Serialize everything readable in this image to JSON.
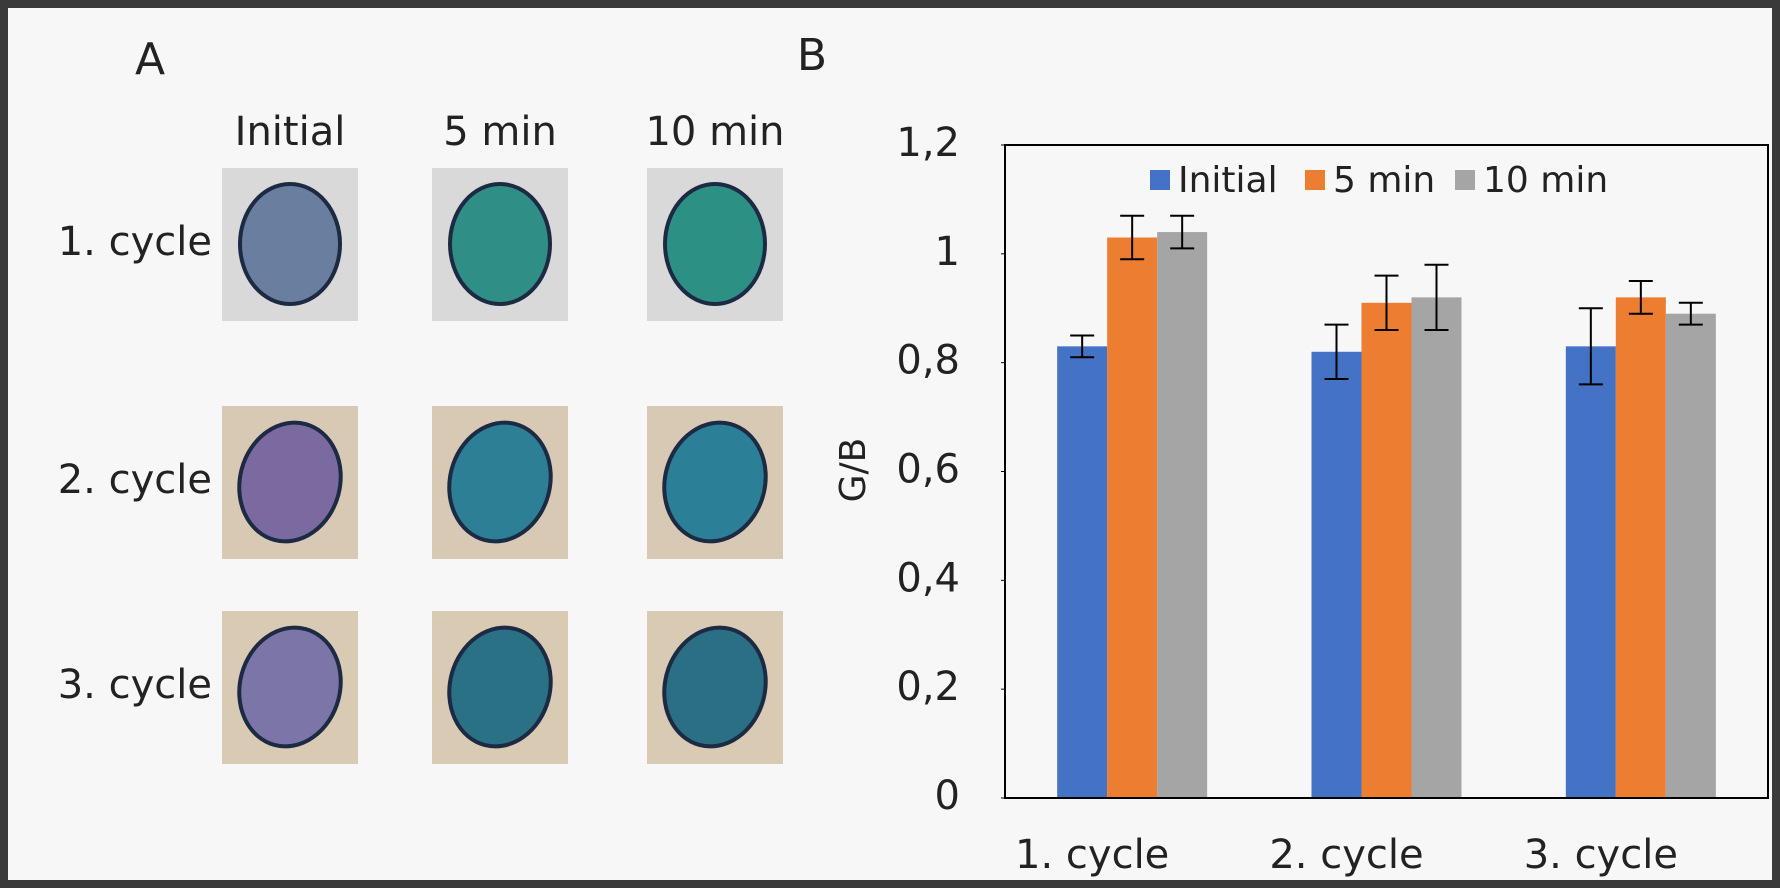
{
  "panel_a": {
    "label": "A",
    "columns": [
      "Initial",
      "5 min",
      "10 min"
    ],
    "rows": [
      "1. cycle",
      "2. cycle",
      "3. cycle"
    ]
  },
  "chart_data": {
    "type": "bar",
    "panel_label": "B",
    "y_label": "G/B",
    "categories": [
      "1. cycle",
      "2. cycle",
      "3. cycle"
    ],
    "series": [
      {
        "name": "Initial",
        "color": "#4472c4",
        "values": [
          0.83,
          0.82,
          0.83
        ],
        "errors": [
          0.02,
          0.05,
          0.07
        ]
      },
      {
        "name": "5 min",
        "color": "#ed7d31",
        "values": [
          1.03,
          0.91,
          0.92
        ],
        "errors": [
          0.04,
          0.05,
          0.03
        ]
      },
      {
        "name": "10 min",
        "color": "#a5a5a5",
        "values": [
          1.04,
          0.92,
          0.89
        ],
        "errors": [
          0.03,
          0.06,
          0.02
        ]
      }
    ],
    "ylim": [
      0,
      1.2
    ],
    "yticks": [
      0,
      {
        "value": 0.2,
        "label": "0,2"
      },
      {
        "value": 0.4,
        "label": "0,4"
      },
      {
        "value": 0.6,
        "label": "0,6"
      },
      {
        "value": 0.8,
        "label": "0,8"
      },
      1,
      {
        "value": 1.2,
        "label": "1,2"
      }
    ],
    "legend": "top-right"
  }
}
